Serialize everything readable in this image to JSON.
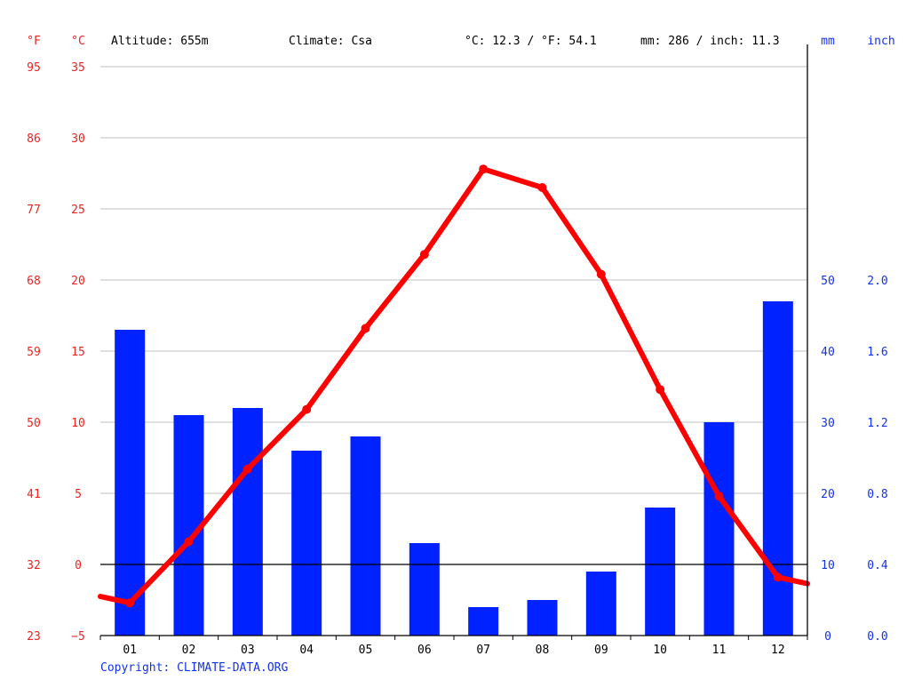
{
  "header": {
    "unit_f": "°F",
    "unit_c": "°C",
    "altitude": "Altitude: 655m",
    "climate": "Climate: Csa",
    "temp_summary": "°C: 12.3 / °F: 54.1",
    "precip_summary": "mm: 286 / inch: 11.3",
    "unit_mm": "mm",
    "unit_inch": "inch"
  },
  "copyright": "Copyright: CLIMATE-DATA.ORG",
  "colors": {
    "temperature": "#ff0000",
    "precipitation": "#0022ff",
    "left_axis_text": "#ee2222",
    "right_axis_text": "#1133ee",
    "grid": "#c0c0c0",
    "zero_line": "#000000",
    "text": "#000000"
  },
  "chart_data": {
    "type": "bar+line",
    "categories": [
      "01",
      "02",
      "03",
      "04",
      "05",
      "06",
      "07",
      "08",
      "09",
      "10",
      "11",
      "12"
    ],
    "series": [
      {
        "type": "bar",
        "axis": "right",
        "unit": "mm",
        "values": [
          43,
          31,
          32,
          26,
          28,
          13,
          4,
          5,
          9,
          18,
          30,
          47
        ]
      },
      {
        "type": "line",
        "axis": "left",
        "unit": "°C",
        "values": [
          -2.7,
          1.6,
          6.7,
          10.9,
          16.6,
          21.8,
          27.8,
          26.5,
          20.4,
          12.3,
          4.8,
          -0.9
        ]
      }
    ],
    "left_axis": {
      "celsius_ticks": [
        "35",
        "30",
        "25",
        "20",
        "15",
        "10",
        "5",
        "0",
        "−5"
      ],
      "fahrenheit_ticks": [
        "95",
        "86",
        "77",
        "68",
        "59",
        "50",
        "41",
        "32",
        "23"
      ],
      "range": [
        -5,
        35
      ]
    },
    "right_axis": {
      "mm_ticks": [
        "50",
        "40",
        "30",
        "20",
        "10",
        "0"
      ],
      "inch_ticks": [
        "2.0",
        "1.6",
        "1.2",
        "0.8",
        "0.4",
        "0.0"
      ],
      "range": [
        0,
        80
      ]
    },
    "grid": true
  }
}
